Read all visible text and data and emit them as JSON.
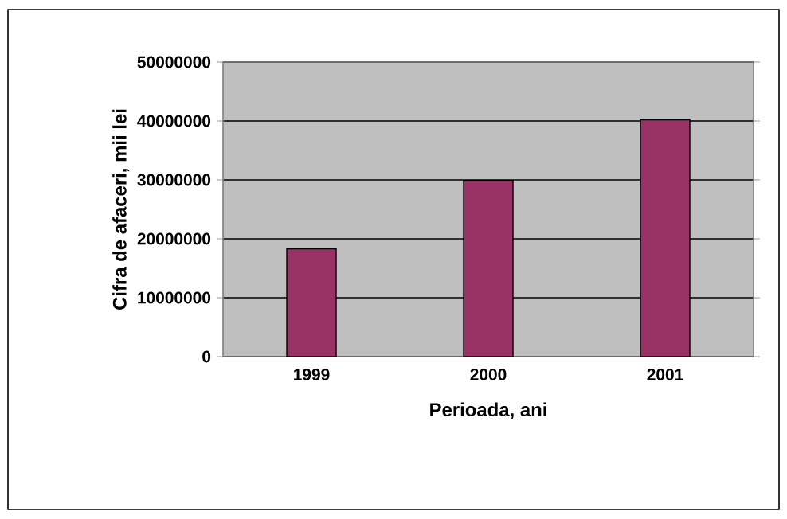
{
  "chart_data": {
    "type": "bar",
    "categories": [
      "1999",
      "2000",
      "2001"
    ],
    "values": [
      18300000,
      29900000,
      40200000
    ],
    "color": "#993366",
    "xlabel": "Perioada, ani",
    "ylabel": "Cifra de afaceri, mii lei",
    "ylim": [
      0,
      50000000
    ],
    "yticks": [
      0,
      10000000,
      20000000,
      30000000,
      40000000,
      50000000
    ],
    "grid": "y"
  }
}
